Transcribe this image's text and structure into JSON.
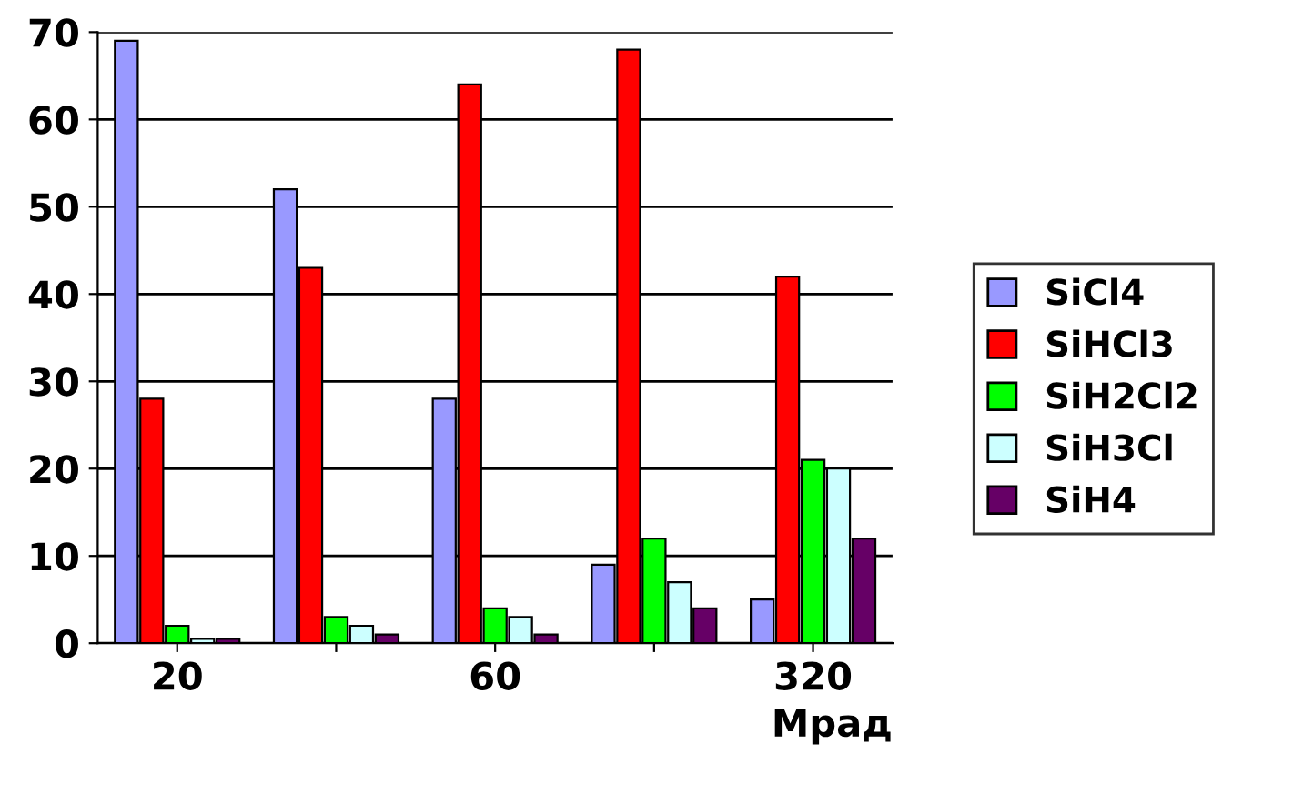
{
  "chart_data": {
    "type": "bar",
    "xlabel": "Мрад",
    "categories": [
      "20",
      null,
      "60",
      null,
      "320"
    ],
    "series": [
      {
        "name": "SiCl4",
        "color": "#9999ff",
        "values": [
          69,
          52,
          28,
          9,
          5
        ]
      },
      {
        "name": "SiHCl3",
        "color": "#ff0000",
        "values": [
          28,
          43,
          64,
          68,
          42
        ]
      },
      {
        "name": "SiH2Cl2",
        "color": "#00ff00",
        "values": [
          2,
          3,
          4,
          12,
          21
        ]
      },
      {
        "name": "SiH3Cl",
        "color": "#ccffff",
        "values": [
          0.5,
          2,
          3,
          7,
          20
        ]
      },
      {
        "name": "SiH4",
        "color": "#660066",
        "values": [
          0.5,
          1,
          1,
          4,
          12
        ]
      }
    ],
    "ylim": [
      0,
      70
    ],
    "yticks": [
      0,
      10,
      20,
      30,
      40,
      50,
      60,
      70
    ],
    "grid": "y",
    "legend": "right"
  }
}
